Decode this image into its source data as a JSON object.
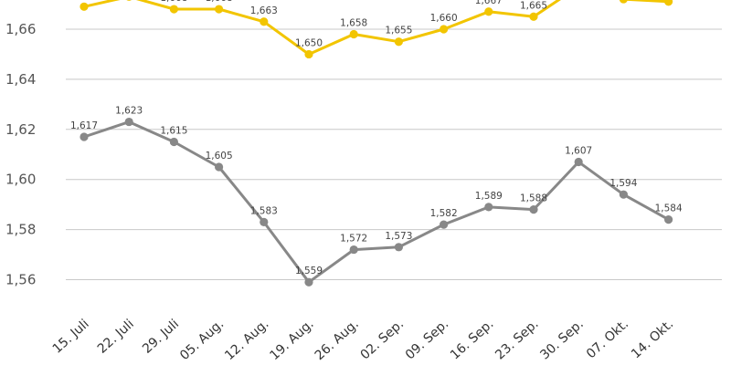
{
  "chart_data": {
    "type": "line",
    "title": "",
    "xlabel": "",
    "ylabel": "",
    "categories": [
      "15. Juli",
      "22. Juli",
      "29. Juli",
      "05. Aug.",
      "12. Aug.",
      "19. Aug.",
      "26. Aug.",
      "02. Sep.",
      "09. Sep.",
      "16. Sep.",
      "23. Sep.",
      "30. Sep.",
      "07. Okt.",
      "14. Okt."
    ],
    "ylim": [
      1.545,
      1.675
    ],
    "yticks": [
      1.56,
      1.58,
      1.6,
      1.62,
      1.64,
      1.66
    ],
    "ytick_labels": [
      "1,56",
      "1,58",
      "1,60",
      "1,62",
      "1,64",
      "1,66"
    ],
    "grid": true,
    "series": [
      {
        "name": "Serie gelb",
        "color": "#f2c500",
        "values": [
          1.669,
          1.673,
          1.668,
          1.668,
          1.663,
          1.65,
          1.658,
          1.655,
          1.66,
          1.667,
          1.665,
          1.677,
          1.672,
          1.671
        ],
        "labels": [
          "1,669",
          "",
          "1,668",
          "1,668",
          "1,663",
          "1,650",
          "1,658",
          "1,655",
          "1,660",
          "1,667",
          "1,665",
          "",
          "",
          "1,671"
        ]
      },
      {
        "name": "Serie grau",
        "color": "#888888",
        "values": [
          1.617,
          1.623,
          1.615,
          1.605,
          1.583,
          1.559,
          1.572,
          1.573,
          1.582,
          1.589,
          1.588,
          1.607,
          1.594,
          1.584
        ],
        "labels": [
          "1,617",
          "1,623",
          "1,615",
          "1,605",
          "1,583",
          "1,559",
          "1,572",
          "1,573",
          "1,582",
          "1,589",
          "1,588",
          "1,607",
          "1,594",
          "1,584"
        ]
      }
    ]
  }
}
